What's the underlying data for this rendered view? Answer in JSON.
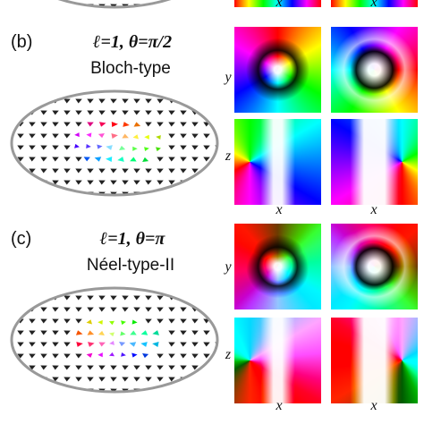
{
  "top": {
    "x_labels": [
      "x",
      "x"
    ]
  },
  "panels": [
    {
      "label": "(b)",
      "formula": "ℓ=1, θ=π/2",
      "name": "Bloch-type",
      "axis_y": "y",
      "axis_z": "z",
      "x_labels": [
        "x",
        "x"
      ]
    },
    {
      "label": "(c)",
      "formula": "ℓ=1, θ=π",
      "name": "Néel-type-II",
      "axis_y": "y",
      "axis_z": "z",
      "x_labels": [
        "x",
        "x"
      ]
    }
  ]
}
